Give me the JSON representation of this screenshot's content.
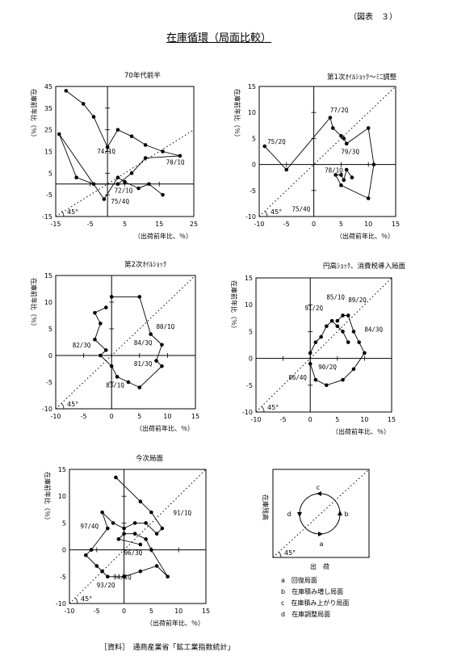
{
  "figure_no": "（図表　３）",
  "main_title": "在庫循環（局面比較）",
  "source": "［資料］　通商産業省「鉱工業指数統計」",
  "chart_data": [
    {
      "type": "scatter",
      "title": "70年代前半",
      "xlabel": "（出荷前年比、％）",
      "ylabel": "在庫前年比（％）",
      "xlim": [
        -15,
        25
      ],
      "ylim": [
        -15,
        45
      ],
      "xticks": [
        -15,
        -5,
        5,
        15,
        25
      ],
      "yticks": [
        -15,
        -5,
        5,
        15,
        25,
        35,
        45
      ],
      "guide_label": "45°",
      "points": [
        [
          -12,
          43
        ],
        [
          -7,
          37
        ],
        [
          -4,
          31
        ],
        [
          0,
          17
        ],
        [
          3,
          25
        ],
        [
          7,
          22
        ],
        [
          11,
          18
        ],
        [
          16,
          15
        ],
        [
          21,
          13
        ],
        [
          11,
          12
        ],
        [
          7,
          5
        ],
        [
          3,
          0
        ],
        [
          -4,
          0
        ],
        [
          -9,
          3
        ],
        [
          -14,
          23
        ],
        [
          -1,
          -7
        ],
        [
          3,
          3
        ],
        [
          5,
          1
        ],
        [
          9,
          -2
        ],
        [
          12,
          0
        ],
        [
          16,
          -5
        ]
      ],
      "point_labels": [
        {
          "text": "70/1Q",
          "x": 17,
          "y": 9
        },
        {
          "text": "74/1Q",
          "x": -3,
          "y": 14
        },
        {
          "text": "72/1Q",
          "x": 2,
          "y": -4
        },
        {
          "text": "75/4Q",
          "x": 1,
          "y": -9
        }
      ]
    },
    {
      "type": "scatter",
      "title": "第1次ｵｲﾙｼｮｯｸ～ﾐﾆ調整",
      "xlabel": "（出荷前年比、％）",
      "ylabel": "在庫前年比（％）",
      "xlim": [
        -10,
        15
      ],
      "ylim": [
        -10,
        15
      ],
      "xticks": [
        -10,
        -5,
        0,
        5,
        10,
        15
      ],
      "yticks": [
        -10,
        -5,
        0,
        5,
        10,
        15
      ],
      "guide_label": "45°",
      "points": [
        [
          -9,
          3.5
        ],
        [
          -5,
          -1
        ],
        [
          3,
          9
        ],
        [
          3.5,
          7
        ],
        [
          5,
          5.5
        ],
        [
          5.5,
          5
        ],
        [
          6,
          4
        ],
        [
          10,
          7
        ],
        [
          11,
          0
        ],
        [
          10,
          -6.5
        ],
        [
          5,
          -4
        ],
        [
          4,
          -2
        ],
        [
          5,
          -2
        ],
        [
          5.5,
          -3
        ],
        [
          6,
          -1
        ],
        [
          7,
          -2.5
        ]
      ],
      "point_labels": [
        {
          "text": "75/2Q",
          "x": -8.5,
          "y": 4
        },
        {
          "text": "77/2Q",
          "x": 3,
          "y": 10
        },
        {
          "text": "79/3Q",
          "x": 5,
          "y": 2
        },
        {
          "text": "78/1Q",
          "x": 2,
          "y": -1.5
        },
        {
          "text": "75/4Q",
          "x": -4,
          "y": -9
        }
      ]
    },
    {
      "type": "scatter",
      "title": "第2次ｵｲﾙｼｮｯｸ",
      "xlabel": "（出荷前年比、％）",
      "ylabel": "在庫前年比（％）",
      "xlim": [
        -10,
        15
      ],
      "ylim": [
        -10,
        15
      ],
      "xticks": [
        -10,
        -5,
        0,
        5,
        10,
        15
      ],
      "yticks": [
        -10,
        -5,
        0,
        5,
        10,
        15
      ],
      "guide_label": "45°",
      "points": [
        [
          0,
          11
        ],
        [
          5,
          11
        ],
        [
          7,
          4
        ],
        [
          9,
          2
        ],
        [
          8,
          -1
        ],
        [
          9,
          -2
        ],
        [
          5,
          -6
        ],
        [
          3,
          -5
        ],
        [
          1,
          -4
        ],
        [
          0,
          -2
        ],
        [
          -2,
          0
        ],
        [
          -1,
          1
        ],
        [
          -3,
          3
        ],
        [
          -2,
          6
        ],
        [
          -3,
          8
        ],
        [
          -1,
          9
        ]
      ],
      "point_labels": [
        {
          "text": "80/1Q",
          "x": 8,
          "y": 5
        },
        {
          "text": "84/3Q",
          "x": 4,
          "y": 2
        },
        {
          "text": "82/3Q",
          "x": -7,
          "y": 1.5
        },
        {
          "text": "81/3Q",
          "x": 4,
          "y": -2
        },
        {
          "text": "83/1Q",
          "x": -1,
          "y": -6
        }
      ]
    },
    {
      "type": "scatter",
      "title": "円高ｼｮｯｸ、消費税導入局面",
      "xlabel": "（出荷前年比、％）",
      "ylabel": "在庫前年比（％）",
      "xlim": [
        -10,
        15
      ],
      "ylim": [
        -10,
        15
      ],
      "xticks": [
        -10,
        -5,
        0,
        5,
        10,
        15
      ],
      "yticks": [
        -10,
        -5,
        0,
        5,
        10,
        15
      ],
      "guide_label": "45°",
      "points": [
        [
          5,
          7
        ],
        [
          6,
          8
        ],
        [
          7,
          8
        ],
        [
          8,
          5
        ],
        [
          9,
          3
        ],
        [
          10,
          1
        ],
        [
          8,
          -2
        ],
        [
          6,
          -4
        ],
        [
          3,
          -5
        ],
        [
          1,
          -4
        ],
        [
          0,
          -1
        ],
        [
          0,
          1
        ],
        [
          1,
          3
        ],
        [
          2,
          4
        ],
        [
          3,
          6
        ],
        [
          4,
          7
        ],
        [
          5,
          6
        ],
        [
          6,
          5
        ],
        [
          7,
          3
        ]
      ],
      "point_labels": [
        {
          "text": "85/1Q",
          "x": 3,
          "y": 11
        },
        {
          "text": "89/2Q",
          "x": 7,
          "y": 10.5
        },
        {
          "text": "91/2Q",
          "x": -1,
          "y": 9
        },
        {
          "text": "84/3Q",
          "x": 10,
          "y": 5
        },
        {
          "text": "90/2Q",
          "x": 1.5,
          "y": -2
        },
        {
          "text": "86/4Q",
          "x": -4,
          "y": -4
        }
      ]
    },
    {
      "type": "scatter",
      "title": "今次局面",
      "xlabel": "（出荷前年比、％）",
      "ylabel": "在庫前年比（％）",
      "xlim": [
        -10,
        15
      ],
      "ylim": [
        -10,
        15
      ],
      "xticks": [
        -10,
        -5,
        0,
        5,
        10,
        15
      ],
      "yticks": [
        -10,
        -5,
        0,
        5,
        10,
        15
      ],
      "guide_label": "45°",
      "points": [
        [
          -1.5,
          13.5
        ],
        [
          3,
          9
        ],
        [
          5,
          7
        ],
        [
          7,
          4
        ],
        [
          6,
          3
        ],
        [
          4,
          5
        ],
        [
          2,
          5
        ],
        [
          0,
          4
        ],
        [
          -2,
          5
        ],
        [
          -4,
          7
        ],
        [
          -3,
          4
        ],
        [
          -6,
          0
        ],
        [
          -7,
          -1
        ],
        [
          -5,
          -3
        ],
        [
          -4,
          -4
        ],
        [
          -3,
          -5
        ],
        [
          0,
          -5
        ],
        [
          3,
          -4
        ],
        [
          6,
          -3
        ],
        [
          8,
          -5
        ],
        [
          5,
          0
        ],
        [
          4,
          2
        ],
        [
          2,
          3
        ],
        [
          0,
          3
        ],
        [
          -1,
          2
        ],
        [
          3,
          1
        ]
      ],
      "point_labels": [
        {
          "text": "91/1Q",
          "x": 9,
          "y": 6.5
        },
        {
          "text": "97/4Q",
          "x": -8,
          "y": 4
        },
        {
          "text": "96/3Q",
          "x": 0,
          "y": -1
        },
        {
          "text": "94/1Q",
          "x": -2,
          "y": -5.5
        },
        {
          "text": "93/2Q",
          "x": -5,
          "y": -7
        }
      ]
    }
  ],
  "concept": {
    "xlabel": "出　荷",
    "ylabel": "在庫残高",
    "guide_label": "45°",
    "phases": [
      "a",
      "b",
      "c",
      "d"
    ],
    "legend": [
      "a　回復局面",
      "b　在庫積み増し局面",
      "c　在庫積み上がり局面",
      "d　在庫調整局面"
    ]
  }
}
